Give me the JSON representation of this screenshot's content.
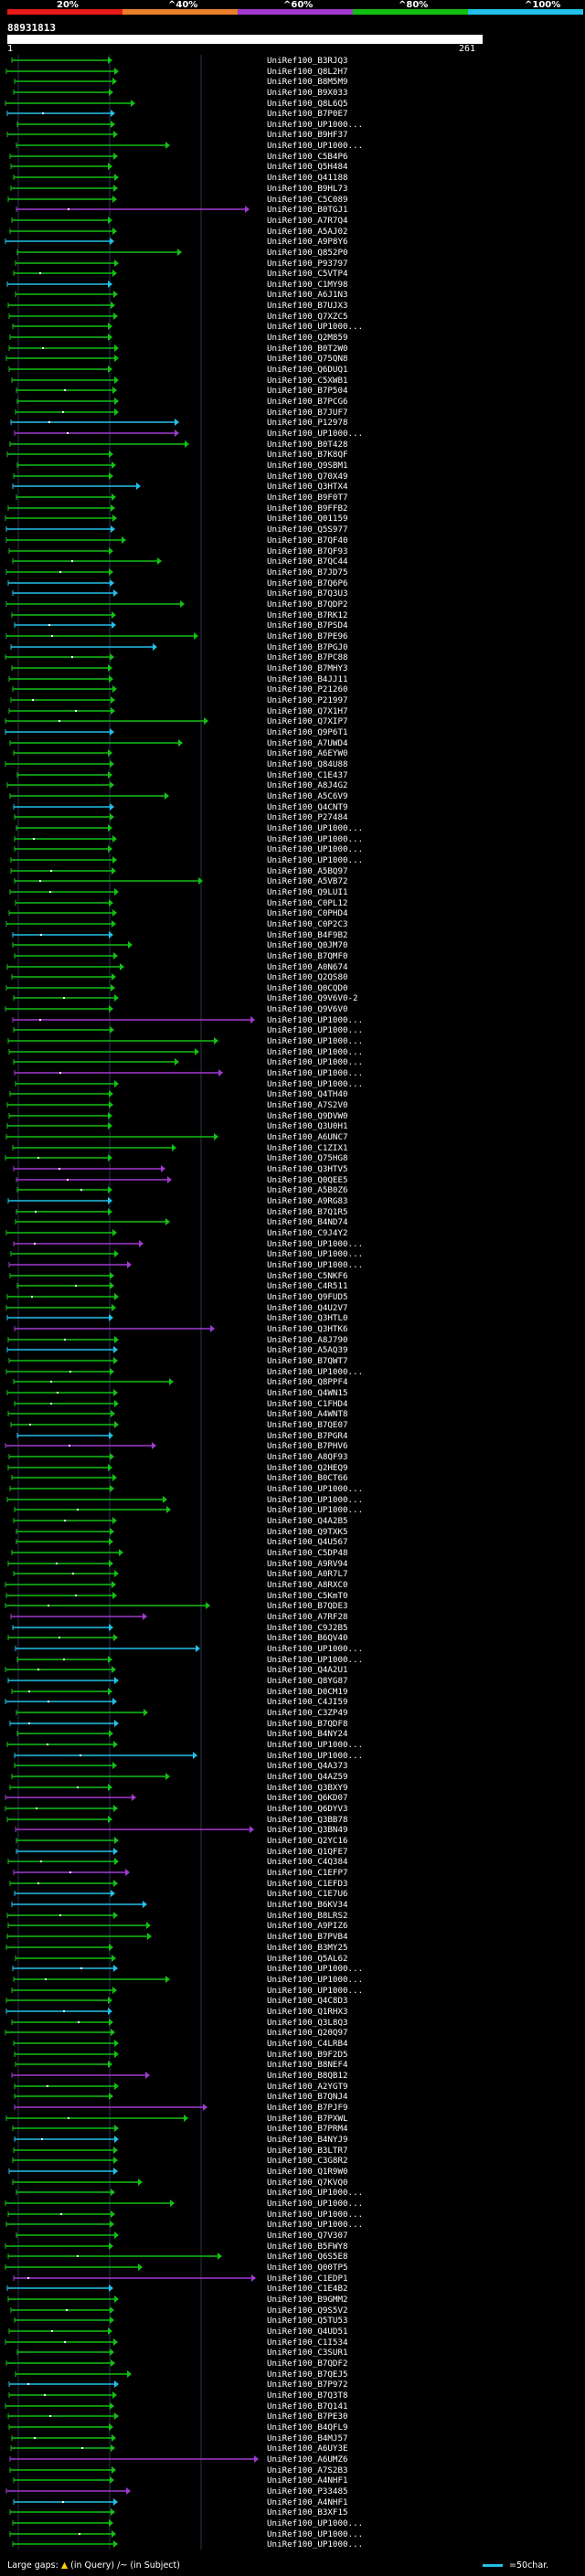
{
  "query": {
    "id": "88931813",
    "start_label": "1",
    "end_label": "261"
  },
  "colorbar": {
    "labels": [
      "20%",
      "^40%",
      "^60%",
      "^80%",
      "^100%"
    ],
    "colors": [
      "#e81a1a",
      "#e8802a",
      "#a03ad0",
      "#12c012",
      "#22c0e8"
    ]
  },
  "legend": {
    "large_gaps": "Large gaps:",
    "in_query": "(in Query)",
    "in_subject": "/~ (in Subject)",
    "scale": "=50char."
  },
  "hits": {
    "names": [
      "UniRef100_B3RJQ3",
      "UniRef100_Q8L2H7",
      "UniRef100_B8M5M9",
      "UniRef100_B9X033",
      "UniRef100_Q8L6Q5",
      "UniRef100_B7P0E7",
      "UniRef100_UP1000...",
      "UniRef100_B9HF37",
      "UniRef100_UP1000...",
      "UniRef100_C5B4P6",
      "UniRef100_Q5H484",
      "UniRef100_Q41188",
      "UniRef100_B9HL73",
      "UniRef100_C5C089",
      "UniRef100_B0TGJ1",
      "UniRef100_A7R7Q4",
      "UniRef100_A5AJ02",
      "UniRef100_A9P8Y6",
      "UniRef100_Q852P0",
      "UniRef100_P93797",
      "UniRef100_C5VTP4",
      "UniRef100_C1MY98",
      "UniRef100_A6J1N3",
      "UniRef100_B7UJX3",
      "UniRef100_Q7XZC5",
      "UniRef100_UP1000...",
      "UniRef100_Q2M859",
      "UniRef100_B0T2W0",
      "UniRef100_Q75QN8",
      "UniRef100_Q6DUQ1",
      "UniRef100_C5XWB1",
      "UniRef100_B7P504",
      "UniRef100_B7PCG6",
      "UniRef100_B7JUF7",
      "UniRef100_P12978",
      "UniRef100_UP1000...",
      "UniRef100_B0T428",
      "UniRef100_B7K8QF",
      "UniRef100_Q9SBM1",
      "UniRef100_Q70X49",
      "UniRef100_Q3HTX4",
      "UniRef100_B9F0T7",
      "UniRef100_B9FFB2",
      "UniRef100_Q01159",
      "UniRef100_Q5S977",
      "UniRef100_B7QF40",
      "UniRef100_B7QF93",
      "UniRef100_B7QC44",
      "UniRef100_B7JD75",
      "UniRef100_B7Q6P6",
      "UniRef100_B7Q3U3",
      "UniRef100_B7QDP2",
      "UniRef100_B7RK12",
      "UniRef100_B7PSD4",
      "UniRef100_B7PE96",
      "UniRef100_B7PGJ0",
      "UniRef100_B7PC88",
      "UniRef100_B7MHY3",
      "UniRef100_B4JJ11",
      "UniRef100_P21260",
      "UniRef100_P21997",
      "UniRef100_Q7X1H7",
      "UniRef100_Q7XIP7",
      "UniRef100_Q9P6T1",
      "UniRef100_A7UWD4",
      "UniRef100_A6EYW0",
      "UniRef100_Q84U88",
      "UniRef100_C1E437",
      "UniRef100_A8J4G2",
      "UniRef100_A5C6V9",
      "UniRef100_Q4CNT9",
      "UniRef100_P27484",
      "UniRef100_UP1000...",
      "UniRef100_UP1000...",
      "UniRef100_UP1000...",
      "UniRef100_UP1000...",
      "UniRef100_A5BQ97",
      "UniRef100_A5VB72",
      "UniRef100_Q9LUI1",
      "UniRef100_C0PL12",
      "UniRef100_C0PHD4",
      "UniRef100_C0P2C3",
      "UniRef100_B4F9B2",
      "UniRef100_Q0JM70",
      "UniRef100_B7QMF0",
      "UniRef100_A0N674",
      "UniRef100_Q2QS80",
      "UniRef100_Q0CQD0",
      "UniRef100_Q9V6V0-2",
      "UniRef100_Q9V6V0",
      "UniRef100_UP1000...",
      "UniRef100_UP1000...",
      "UniRef100_UP1000...",
      "UniRef100_UP1000...",
      "UniRef100_UP1000...",
      "UniRef100_UP1000...",
      "UniRef100_UP1000...",
      "UniRef100_Q4TH40",
      "UniRef100_A7S2V0",
      "UniRef100_Q9DVW0",
      "UniRef100_Q3U0H1",
      "UniRef100_A6UNC7",
      "UniRef100_C1ZIX1",
      "UniRef100_Q75HG8",
      "UniRef100_Q3HTV5",
      "UniRef100_Q0QEE5",
      "UniRef100_A5B0Z6",
      "UniRef100_A9RG83",
      "UniRef100_B7Q1R5",
      "UniRef100_B4ND74",
      "UniRef100_C9J4Y2",
      "UniRef100_UP1000...",
      "UniRef100_UP1000...",
      "UniRef100_UP1000...",
      "UniRef100_C5NKF6",
      "UniRef100_C4R511",
      "UniRef100_Q9FUD5",
      "UniRef100_Q4U2V7",
      "UniRef100_Q3HTL0",
      "UniRef100_Q3HTK6",
      "UniRef100_A8J790",
      "UniRef100_A5AQ39",
      "UniRef100_B7QWT7",
      "UniRef100_UP1000...",
      "UniRef100_Q8PPF4",
      "UniRef100_Q4WN15",
      "UniRef100_C1FHD4",
      "UniRef100_A4WNT8",
      "UniRef100_B7QE07",
      "UniRef100_B7PGR4",
      "UniRef100_B7PHV6",
      "UniRef100_A8QF93",
      "UniRef100_Q2HEQ9",
      "UniRef100_B0CT66",
      "UniRef100_UP1000...",
      "UniRef100_UP1000...",
      "UniRef100_UP1000...",
      "UniRef100_Q4A2B5",
      "UniRef100_Q9TXK5",
      "UniRef100_Q4U567",
      "UniRef100_C5DP48",
      "UniRef100_A9RV94",
      "UniRef100_A0R7L7",
      "UniRef100_A8RXC0",
      "UniRef100_C5KmT0",
      "UniRef100_B7QDE3",
      "UniRef100_A7RF28",
      "UniRef100_C9J2B5",
      "UniRef100_B6QV40",
      "UniRef100_UP1000...",
      "UniRef100_UP1000...",
      "UniRef100_Q4A2U1",
      "UniRef100_Q8YG87",
      "UniRef100_D0CM19",
      "UniRef100_C4JI59",
      "UniRef100_C3ZP49",
      "UniRef100_B7QDF8",
      "UniRef100_B4NY24",
      "UniRef100_UP1000...",
      "UniRef100_UP1000...",
      "UniRef100_Q4A373",
      "UniRef100_Q4AZ59",
      "UniRef100_Q3BXY9",
      "UniRef100_Q6KD07",
      "UniRef100_Q6DYV3",
      "UniRef100_Q3BB78",
      "UniRef100_Q3BN49",
      "UniRef100_Q2YC16",
      "UniRef100_Q1QFE7",
      "UniRef100_C4Q384",
      "UniRef100_C1EFP7",
      "UniRef100_C1EFD3",
      "UniRef100_C1E7U6",
      "UniRef100_B6KV34",
      "UniRef100_B8LRS2",
      "UniRef100_A9PIZ6",
      "UniRef100_B7PVB4",
      "UniRef100_B3MY25",
      "UniRef100_Q5AL62",
      "UniRef100_UP1000...",
      "UniRef100_UP1000...",
      "UniRef100_UP1000...",
      "UniRef100_Q4C8D3",
      "UniRef100_Q1RHX3",
      "UniRef100_Q3L8Q3",
      "UniRef100_Q20Q97",
      "UniRef100_C4LRB4",
      "UniRef100_B9F2D5",
      "UniRef100_B8NEF4",
      "UniRef100_B8QB12",
      "UniRef100_A2YGT9",
      "UniRef100_B7QNJ4",
      "UniRef100_B7PJF9",
      "UniRef100_B7PXWL",
      "UniRef100_B7PRM4",
      "UniRef100_B4NYJ9",
      "UniRef100_B3LTR7",
      "UniRef100_C3G8R2",
      "UniRef100_Q1R9W0",
      "UniRef100_Q7KVQ0",
      "UniRef100_UP1000...",
      "UniRef100_UP1000...",
      "UniRef100_UP1000...",
      "UniRef100_UP1000...",
      "UniRef100_Q7V307",
      "UniRef100_B5FWY8",
      "UniRef100_Q6S5E8",
      "UniRef100_Q00TP5",
      "UniRef100_C1EDP1",
      "UniRef100_C1E4B2",
      "UniRef100_B9GMM2",
      "UniRef100_Q9S5V2",
      "UniRef100_Q5TU53",
      "UniRef100_Q4UD51",
      "UniRef100_C1I534",
      "UniRef100_C3SUR1",
      "UniRef100_B7QDF2",
      "UniRef100_B7QEJ5",
      "UniRef100_B7P972",
      "UniRef100_B7Q3T8",
      "UniRef100_B7Q141",
      "UniRef100_B7PE30",
      "UniRef100_B4QFL9",
      "UniRef100_B4MJ57",
      "UniRef100_A6UY3E",
      "UniRef100_A6UMZ6",
      "UniRef100_A7S2B3",
      "UniRef100_A4NHF1",
      "UniRef100_P33485",
      "UniRef100_A4NHF1",
      "UniRef100_B3XF15",
      "UniRef100_UP1000...",
      "UniRef100_UP1000...",
      "UniRef100_UP1000..."
    ]
  }
}
